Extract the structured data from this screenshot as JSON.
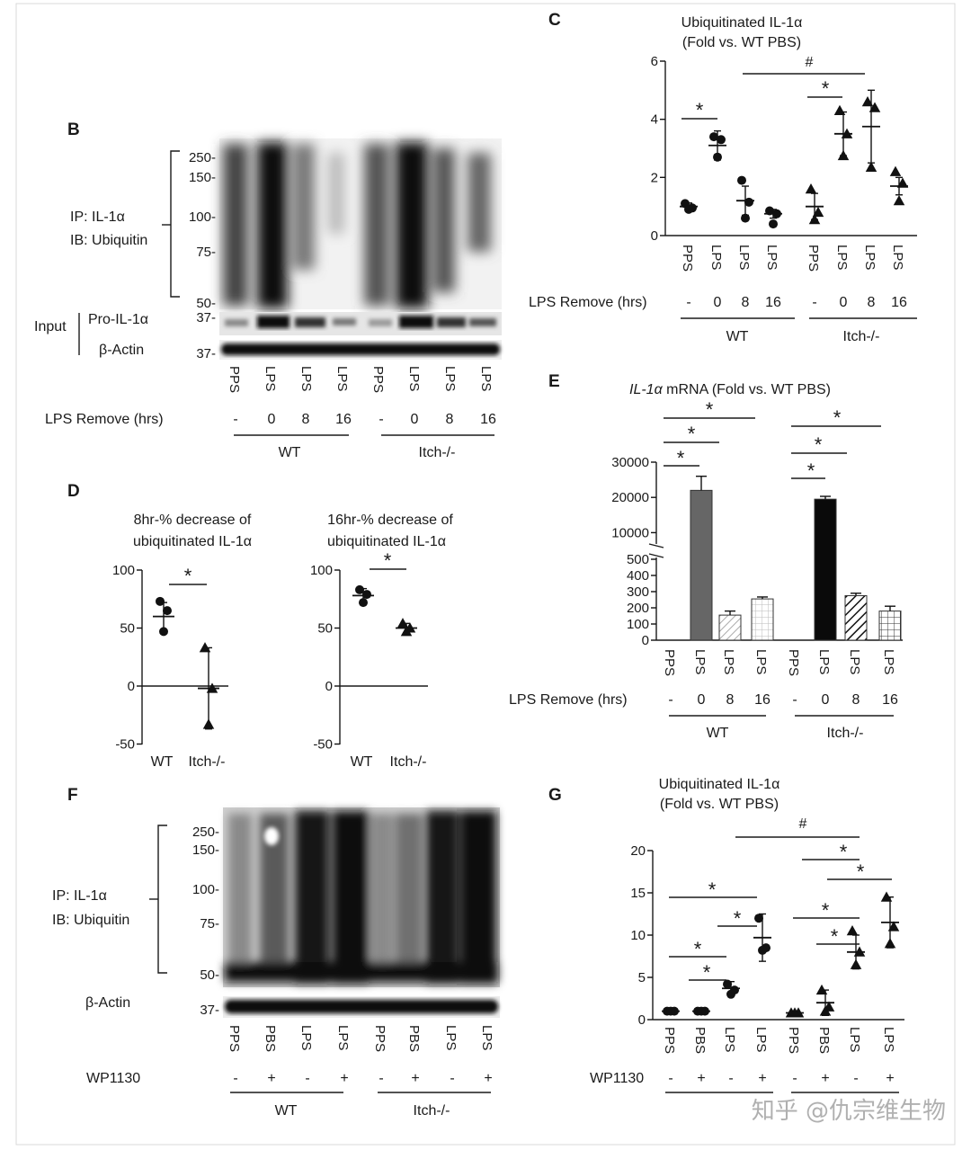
{
  "panels": {
    "B": {
      "letter": "B",
      "ip_label": "IP: IL-1α",
      "ib_label": "IB: Ubiquitin",
      "input_label": "Input",
      "pro_label": "Pro-IL-1α",
      "actin_label": "β-Actin",
      "markers": [
        "250-",
        "150-",
        "100-",
        "75-",
        "50-",
        "37-",
        "37-"
      ],
      "lanes": [
        "PPS",
        "LPS",
        "LPS",
        "LPS",
        "PPS",
        "LPS",
        "LPS",
        "LPS"
      ],
      "row_label": "LPS Remove (hrs)",
      "row_values": [
        "-",
        "0",
        "8",
        "16",
        "-",
        "0",
        "8",
        "16"
      ],
      "groups": [
        "WT",
        "Itch-/-"
      ]
    },
    "C": {
      "letter": "C",
      "title1": "Ubiquitinated IL-1α",
      "title2": "(Fold vs. WT PBS)",
      "yticks": [
        "0",
        "2",
        "4",
        "6"
      ],
      "lanes": [
        "PPS",
        "LPS",
        "LPS",
        "LPS",
        "PPS",
        "LPS",
        "LPS",
        "LPS"
      ],
      "row_label": "LPS Remove (hrs)",
      "row_values": [
        "-",
        "0",
        "8",
        "16",
        "-",
        "0",
        "8",
        "16"
      ],
      "groups": [
        "WT",
        "Itch-/-"
      ],
      "sig_star": "*",
      "sig_hash": "#"
    },
    "D": {
      "letter": "D",
      "left_title1": "8hr-% decrease of",
      "left_title2": "ubiquitinated IL-1α",
      "right_title1": "16hr-% decrease of",
      "right_title2": "ubiquitinated IL-1α",
      "yticks": [
        "100",
        "50",
        "0",
        "-50"
      ],
      "xlabels": [
        "WT",
        "Itch-/-"
      ],
      "sig_star": "*"
    },
    "E": {
      "letter": "E",
      "title_italic": "IL-1α",
      "title_rest": " mRNA (Fold vs. WT PBS)",
      "yticks_top": [
        "30000",
        "20000",
        "10000"
      ],
      "yticks_bottom": [
        "500",
        "400",
        "300",
        "200",
        "100",
        "0"
      ],
      "lanes": [
        "PPS",
        "LPS",
        "LPS",
        "LPS",
        "PPS",
        "LPS",
        "LPS",
        "LPS"
      ],
      "row_label": "LPS Remove (hrs)",
      "row_values": [
        "-",
        "0",
        "8",
        "16",
        "-",
        "0",
        "8",
        "16"
      ],
      "groups": [
        "WT",
        "Itch-/-"
      ],
      "sig_star": "*"
    },
    "F": {
      "letter": "F",
      "ip_label": "IP: IL-1α",
      "ib_label": "IB: Ubiquitin",
      "actin_label": "β-Actin",
      "markers": [
        "250-",
        "150-",
        "100-",
        "75-",
        "50-",
        "37-"
      ],
      "lanes": [
        "PPS",
        "PBS",
        "LPS",
        "LPS",
        "PPS",
        "PBS",
        "LPS",
        "LPS"
      ],
      "row_label": "WP1130",
      "row_values": [
        "-",
        "+",
        "-",
        "+",
        "-",
        "+",
        "-",
        "+"
      ],
      "groups": [
        "WT",
        "Itch-/-"
      ]
    },
    "G": {
      "letter": "G",
      "title1": "Ubiquitinated IL-1α",
      "title2": "(Fold vs. WT PBS)",
      "yticks": [
        "0",
        "5",
        "10",
        "15",
        "20"
      ],
      "lanes": [
        "PPS",
        "PBS",
        "LPS",
        "LPS",
        "PPS",
        "PBS",
        "LPS",
        "LPS"
      ],
      "row_label": "WP1130",
      "row_values": [
        "-",
        "+",
        "-",
        "+",
        "-",
        "+",
        "-",
        "+"
      ],
      "sig_star": "*",
      "sig_hash": "#"
    }
  },
  "watermark": "知乎 @仇宗维生物",
  "chart_data": [
    {
      "panel": "C",
      "type": "scatter",
      "title": "Ubiquitinated IL-1α (Fold vs. WT PBS)",
      "ylim": [
        0,
        6
      ],
      "categories": [
        "WT -",
        "WT 0",
        "WT 8",
        "WT 16",
        "Itch-/- -",
        "Itch-/- 0",
        "Itch-/- 8",
        "Itch-/- 16"
      ],
      "means": [
        1.0,
        3.1,
        1.2,
        0.75,
        1.0,
        3.5,
        3.75,
        1.7
      ],
      "sd": [
        0.12,
        0.5,
        0.5,
        0.15,
        0.45,
        0.75,
        1.25,
        0.3
      ],
      "points": [
        [
          1.1,
          0.95,
          0.9
        ],
        [
          3.4,
          3.3,
          2.7
        ],
        [
          1.9,
          1.15,
          0.6
        ],
        [
          0.85,
          0.75,
          0.4
        ],
        [
          1.6,
          0.8,
          0.55
        ],
        [
          4.3,
          3.5,
          2.75
        ],
        [
          4.6,
          4.4,
          2.35
        ],
        [
          2.2,
          1.8,
          1.2
        ]
      ],
      "markers": [
        "circle",
        "circle",
        "circle",
        "circle",
        "triangle",
        "triangle",
        "triangle",
        "triangle"
      ]
    },
    {
      "panel": "D-left",
      "type": "scatter",
      "title": "8hr-% decrease of ubiquitinated IL-1α",
      "ylim": [
        -50,
        100
      ],
      "categories": [
        "WT",
        "Itch-/-"
      ],
      "means": [
        60,
        -2
      ],
      "sd": [
        12,
        35
      ],
      "points": [
        [
          73,
          65,
          47
        ],
        [
          33,
          -2,
          -33
        ]
      ],
      "markers": [
        "circle",
        "triangle"
      ]
    },
    {
      "panel": "D-right",
      "type": "scatter",
      "title": "16hr-% decrease of ubiquitinated IL-1α",
      "ylim": [
        -50,
        100
      ],
      "categories": [
        "WT",
        "Itch-/-"
      ],
      "means": [
        78,
        50
      ],
      "sd": [
        6,
        4
      ],
      "points": [
        [
          83,
          79,
          72
        ],
        [
          54,
          50,
          47
        ]
      ],
      "markers": [
        "circle",
        "triangle"
      ]
    },
    {
      "panel": "E",
      "type": "bar",
      "title": "IL-1α mRNA (Fold vs. WT PBS)",
      "categories": [
        "WT -",
        "WT 0",
        "WT 8",
        "WT 16",
        "Itch-/- -",
        "Itch-/- 0",
        "Itch-/- 8",
        "Itch-/- 16"
      ],
      "values": [
        1,
        22000,
        155,
        255,
        1,
        19500,
        275,
        180
      ],
      "errors": [
        0,
        4000,
        25,
        12,
        0,
        800,
        15,
        30
      ],
      "fills": [
        "none",
        "dark-gray",
        "light-diagonal",
        "light-grid",
        "none",
        "black",
        "black-diagonal",
        "grid"
      ]
    },
    {
      "panel": "G",
      "type": "scatter",
      "title": "Ubiquitinated IL-1α (Fold vs. WT PBS)",
      "ylim": [
        0,
        20
      ],
      "categories": [
        "WT PPS -",
        "WT PBS +",
        "WT LPS -",
        "WT LPS +",
        "Itch-/- PPS -",
        "Itch-/- PBS +",
        "Itch-/- LPS -",
        "Itch-/- LPS +"
      ],
      "means": [
        1.0,
        1.0,
        3.7,
        9.7,
        0.8,
        2.0,
        8.0,
        11.5
      ],
      "sd": [
        0.1,
        0.1,
        0.8,
        2.8,
        0.1,
        1.5,
        2.0,
        3.0
      ],
      "points": [
        [
          1.0,
          1.0,
          1.0
        ],
        [
          1.0,
          1.0,
          1.0
        ],
        [
          4.2,
          3.5,
          3.0
        ],
        [
          12.0,
          8.5,
          8.2
        ],
        [
          0.8,
          0.8,
          0.8
        ],
        [
          3.5,
          1.5,
          1.0
        ],
        [
          10.5,
          8.0,
          6.5
        ],
        [
          14.5,
          11.0,
          9.0
        ]
      ],
      "markers": [
        "circle",
        "circle",
        "circle",
        "circle",
        "triangle",
        "triangle",
        "triangle",
        "triangle"
      ]
    }
  ]
}
